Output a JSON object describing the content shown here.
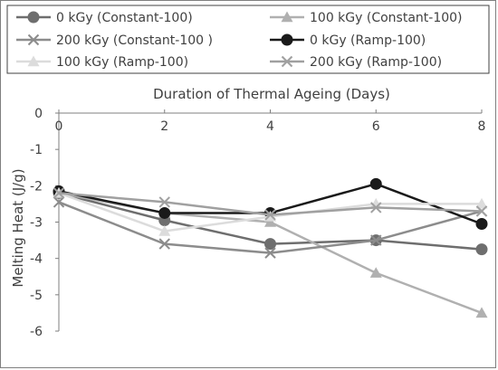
{
  "chart_data": {
    "type": "line",
    "title": "",
    "xlabel": "Duration of Thermal Ageing (Days)",
    "ylabel": "Melting Heat (J/g)",
    "x": [
      0,
      2,
      4,
      6,
      8
    ],
    "xlim": [
      0,
      8
    ],
    "ylim": [
      -6,
      0
    ],
    "x_ticks": [
      0,
      2,
      4,
      6,
      8
    ],
    "y_ticks": [
      0,
      -1,
      -2,
      -3,
      -4,
      -5,
      -6
    ],
    "x_axis_position": "top",
    "grid": false,
    "legend_position": "top",
    "series": [
      {
        "name": "0 kGy (Constant-100)",
        "values": [
          -2.2,
          -2.95,
          -3.6,
          -3.5,
          -3.75
        ],
        "color": "#6e6e6e",
        "marker": "circle"
      },
      {
        "name": "100 kGy (Constant-100)",
        "values": [
          -2.2,
          -2.75,
          -3.0,
          -4.4,
          -5.5
        ],
        "color": "#b0b0b0",
        "marker": "triangle"
      },
      {
        "name": "200 kGy (Constant-100 )",
        "values": [
          -2.45,
          -3.6,
          -3.85,
          -3.5,
          -2.7
        ],
        "color": "#8c8c8c",
        "marker": "x"
      },
      {
        "name": "0 kGy (Ramp-100)",
        "values": [
          -2.15,
          -2.75,
          -2.75,
          -1.95,
          -3.05
        ],
        "color": "#1a1a1a",
        "marker": "circle"
      },
      {
        "name": "100 kGy (Ramp-100)",
        "values": [
          -2.2,
          -3.25,
          -2.85,
          -2.5,
          -2.5
        ],
        "color": "#dcdcdc",
        "marker": "triangle"
      },
      {
        "name": "200 kGy (Ramp-100)",
        "values": [
          -2.2,
          -2.45,
          -2.8,
          -2.6,
          -2.7
        ],
        "color": "#a0a0a0",
        "marker": "x"
      }
    ]
  }
}
